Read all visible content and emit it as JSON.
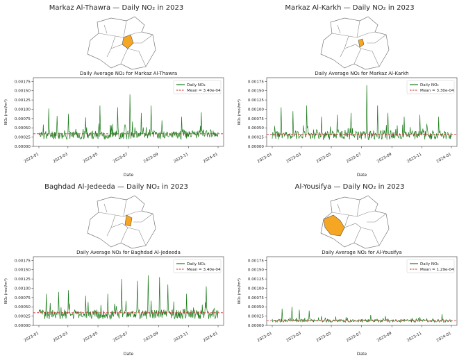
{
  "chart_data": [
    {
      "type": "line",
      "panel_title": "Markaz Al-Thawra — Daily NO₂ in 2023",
      "title": "Daily Average NO₂ for Markaz Al-Thawra",
      "xlabel": "Date",
      "ylabel": "NO₂ (mol/m²)",
      "ylim": [
        0,
        0.00185
      ],
      "yticks": [
        "0.00000",
        "0.00025",
        "0.00050",
        "0.00075",
        "0.00100",
        "0.00125",
        "0.00150",
        "0.00175"
      ],
      "xticks": [
        "2023-01",
        "2023-03",
        "2023-05",
        "2023-07",
        "2023-09",
        "2023-11",
        "2024-01"
      ],
      "legend": [
        "Daily NO₂",
        "Mean = 3.40e-04"
      ],
      "legend_position": "top-right",
      "mean": 0.00034,
      "series_color": "#1a7a1a",
      "mean_color": "#d62728",
      "highlight_color": "#f5a623",
      "peaks": [
        [
          20,
          0.00102
        ],
        [
          37,
          0.00082
        ],
        [
          60,
          0.00088
        ],
        [
          95,
          0.00078
        ],
        [
          124,
          0.0011
        ],
        [
          160,
          0.00105
        ],
        [
          185,
          0.0014
        ],
        [
          208,
          0.0009
        ],
        [
          228,
          0.0011
        ],
        [
          250,
          0.0007
        ],
        [
          290,
          0.0008
        ],
        [
          330,
          0.00092
        ]
      ],
      "base": 0.00032,
      "amp": 0.00012,
      "seed": 11
    },
    {
      "type": "line",
      "panel_title": "Markaz Al-Karkh — Daily NO₂ in 2023",
      "title": "Daily Average NO₂ for Markaz Al-Karkh",
      "xlabel": "Date",
      "ylabel": "NO₂ (mol/m²)",
      "ylim": [
        0,
        0.00185
      ],
      "yticks": [
        "0.00000",
        "0.00025",
        "0.00050",
        "0.00075",
        "0.00100",
        "0.00125",
        "0.00150",
        "0.00175"
      ],
      "xticks": [
        "2023-01",
        "2023-03",
        "2023-05",
        "2023-07",
        "2023-09",
        "2023-11",
        "2024-01"
      ],
      "legend": [
        "Daily NO₂",
        "Mean = 3.30e-04"
      ],
      "legend_position": "top-right",
      "mean": 0.00033,
      "series_color": "#1a7a1a",
      "mean_color": "#d62728",
      "highlight_color": "#f5a623",
      "peaks": [
        [
          18,
          0.00105
        ],
        [
          42,
          0.00095
        ],
        [
          70,
          0.0011
        ],
        [
          100,
          0.0008
        ],
        [
          132,
          0.00085
        ],
        [
          160,
          0.0009
        ],
        [
          192,
          0.00165
        ],
        [
          214,
          0.0011
        ],
        [
          235,
          0.0009
        ],
        [
          268,
          0.0008
        ],
        [
          300,
          0.00085
        ],
        [
          338,
          0.0008
        ]
      ],
      "base": 0.00031,
      "amp": 0.00012,
      "seed": 23
    },
    {
      "type": "line",
      "panel_title": "Baghdad Al-Jedeeda — Daily NO₂ in 2023",
      "title": "Daily Average NO₂ for Baghdad Al-Jedeeda",
      "xlabel": "Date",
      "ylabel": "NO₂ (mol/m²)",
      "ylim": [
        0,
        0.00185
      ],
      "yticks": [
        "0.00000",
        "0.00025",
        "0.00050",
        "0.00075",
        "0.00100",
        "0.00125",
        "0.00150",
        "0.00175"
      ],
      "xticks": [
        "2023-01",
        "2023-03",
        "2023-05",
        "2023-07",
        "2023-09",
        "2023-11",
        "2024-01"
      ],
      "legend": [
        "Daily NO₂",
        "Mean = 3.40e-04"
      ],
      "legend_position": "top-right",
      "mean": 0.00034,
      "series_color": "#1a7a1a",
      "mean_color": "#d62728",
      "highlight_color": "#f5a623",
      "peaks": [
        [
          15,
          0.00085
        ],
        [
          40,
          0.0009
        ],
        [
          60,
          0.00095
        ],
        [
          95,
          0.0008
        ],
        [
          140,
          0.00085
        ],
        [
          168,
          0.00125
        ],
        [
          200,
          0.0012
        ],
        [
          222,
          0.00135
        ],
        [
          245,
          0.0013
        ],
        [
          262,
          0.0011
        ],
        [
          300,
          0.00085
        ],
        [
          340,
          0.00105
        ]
      ],
      "base": 0.00031,
      "amp": 0.00013,
      "seed": 37
    },
    {
      "type": "line",
      "panel_title": "Al-Yousifya — Daily NO₂ in 2023",
      "title": "Daily Average NO₂ for Al-Yousifya",
      "xlabel": "Date",
      "ylabel": "NO₂ (mol/m²)",
      "ylim": [
        0,
        0.00185
      ],
      "yticks": [
        "0.00000",
        "0.00025",
        "0.00050",
        "0.00075",
        "0.00100",
        "0.00125",
        "0.00150",
        "0.00175"
      ],
      "xticks": [
        "2023-01",
        "2023-03",
        "2023-05",
        "2023-07",
        "2023-09",
        "2023-11",
        "2024-01"
      ],
      "legend": [
        "Daily NO₂",
        "Mean = 1.29e-04"
      ],
      "legend_position": "top-right",
      "mean": 0.000129,
      "series_color": "#1a7a1a",
      "mean_color": "#d62728",
      "highlight_color": "#f5a623",
      "peaks": [
        [
          20,
          0.00045
        ],
        [
          40,
          0.0005
        ],
        [
          55,
          0.00042
        ],
        [
          75,
          0.0004
        ],
        [
          100,
          0.00025
        ],
        [
          150,
          0.00022
        ],
        [
          200,
          0.00028
        ],
        [
          230,
          0.00025
        ],
        [
          300,
          0.00022
        ],
        [
          345,
          0.0003
        ]
      ],
      "base": 0.00013,
      "amp": 4e-05,
      "seed": 53
    }
  ]
}
